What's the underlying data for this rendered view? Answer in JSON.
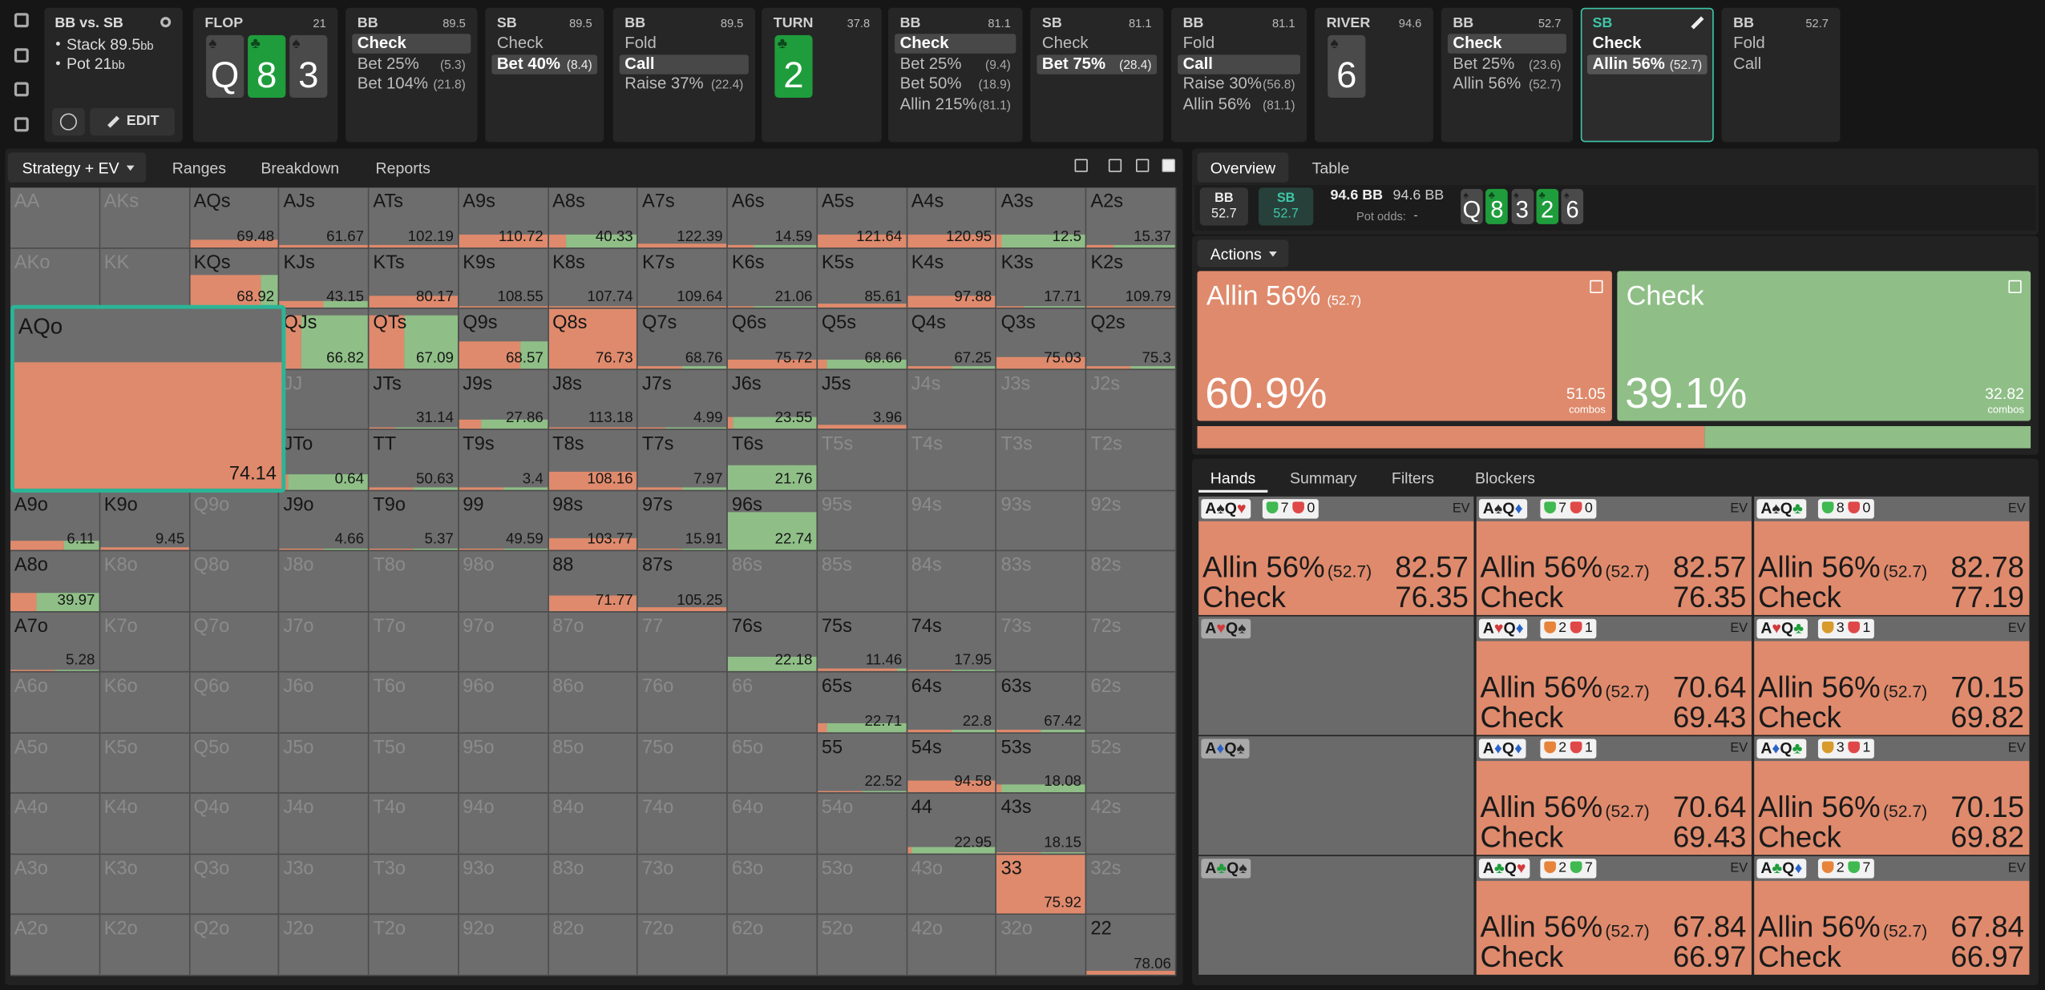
{
  "header": {
    "title": "BB vs. SB",
    "stack": "Stack 89.5",
    "stack_unit": "bb",
    "pot": "Pot 21",
    "pot_unit": "bb",
    "edit": "EDIT"
  },
  "nodes": [
    {
      "street": "FLOP",
      "pot": 21,
      "board": [
        {
          "rank": "Q",
          "suit": "♠"
        },
        {
          "rank": "8",
          "suit": "♣"
        },
        {
          "rank": "3",
          "suit": "♠"
        }
      ]
    },
    {
      "player": "BB",
      "stack": 89.5,
      "selected": 0,
      "actions": [
        {
          "label": "Check"
        },
        {
          "label": "Bet 25%",
          "size": "(5.3)"
        },
        {
          "label": "Bet 104%",
          "size": "(21.8)"
        }
      ]
    },
    {
      "player": "SB",
      "stack": 89.5,
      "selected": 1,
      "actions": [
        {
          "label": "Check"
        },
        {
          "label": "Bet 40%",
          "size": "(8.4)"
        }
      ]
    },
    {
      "player": "BB",
      "stack": 89.5,
      "selected": 1,
      "actions": [
        {
          "label": "Fold"
        },
        {
          "label": "Call"
        },
        {
          "label": "Raise 37%",
          "size": "(22.4)"
        }
      ]
    },
    {
      "street": "TURN",
      "pot": 37.8,
      "board": [
        {
          "rank": "2",
          "suit": "♣"
        }
      ]
    },
    {
      "player": "BB",
      "stack": 81.1,
      "selected": 0,
      "actions": [
        {
          "label": "Check"
        },
        {
          "label": "Bet 25%",
          "size": "(9.4)"
        },
        {
          "label": "Bet 50%",
          "size": "(18.9)"
        },
        {
          "label": "Allin 215%",
          "size": "(81.1)"
        }
      ]
    },
    {
      "player": "SB",
      "stack": 81.1,
      "selected": 1,
      "actions": [
        {
          "label": "Check"
        },
        {
          "label": "Bet 75%",
          "size": "(28.4)"
        }
      ]
    },
    {
      "player": "BB",
      "stack": 81.1,
      "selected": 1,
      "actions": [
        {
          "label": "Fold"
        },
        {
          "label": "Call"
        },
        {
          "label": "Raise 30%",
          "size": "(56.8)"
        },
        {
          "label": "Allin 56%",
          "size": "(81.1)"
        }
      ]
    },
    {
      "street": "RIVER",
      "pot": 94.6,
      "board": [
        {
          "rank": "6",
          "suit": "♠"
        }
      ]
    },
    {
      "player": "BB",
      "stack": 52.7,
      "selected": 0,
      "actions": [
        {
          "label": "Check"
        },
        {
          "label": "Bet 25%",
          "size": "(23.6)"
        },
        {
          "label": "Allin 56%",
          "size": "(52.7)"
        }
      ]
    },
    {
      "player": "SB",
      "active": true,
      "selected": 1,
      "actions": [
        {
          "label": "Check"
        },
        {
          "label": "Allin 56%",
          "size": "(52.7)"
        }
      ]
    },
    {
      "player": "BB",
      "stack": 52.7,
      "actions": [
        {
          "label": "Fold"
        },
        {
          "label": "Call"
        }
      ]
    }
  ],
  "left_tabs": [
    "Strategy + EV",
    "Ranges",
    "Breakdown",
    "Reports"
  ],
  "grid": {
    "hover": [
      2,
      0
    ],
    "rows": [
      [
        [
          "AA"
        ],
        [
          "AKs"
        ],
        [
          "AQs",
          69.48,
          0.12,
          1
        ],
        [
          "AJs",
          61.67,
          0.03,
          1
        ],
        [
          "ATs",
          102.19,
          0.03,
          1
        ],
        [
          "A9s",
          110.72,
          0.2,
          1
        ],
        [
          "A8s",
          40.33,
          0.2,
          0.2
        ],
        [
          "A7s",
          122.39,
          0.06,
          1
        ],
        [
          "A6s",
          14.59,
          0.03,
          0.3
        ],
        [
          "A5s",
          121.64,
          0.2,
          1
        ],
        [
          "A4s",
          120.95,
          0.2,
          1
        ],
        [
          "A3s",
          12.5,
          0.2,
          0.05
        ],
        [
          "A2s",
          15.37,
          0.03,
          0.3
        ]
      ],
      [
        [
          "AKo"
        ],
        [
          "KK"
        ],
        [
          "KQs",
          68.92,
          0.55,
          0.8
        ],
        [
          "KJs",
          43.15,
          0.12,
          0.5
        ],
        [
          "KTs",
          80.17,
          0.2,
          1
        ],
        [
          "K9s",
          108.55,
          0.03,
          1
        ],
        [
          "K8s",
          107.74,
          0.03,
          1
        ],
        [
          "K7s",
          109.64,
          0.03,
          1
        ],
        [
          "K6s",
          21.06,
          0.03,
          0.3
        ],
        [
          "K5s",
          85.61,
          0.06,
          1
        ],
        [
          "K4s",
          97.88,
          0.2,
          1
        ],
        [
          "K3s",
          17.71,
          0.03,
          0.3
        ],
        [
          "K2s",
          109.79,
          0.03,
          1
        ]
      ],
      [
        [
          "AQo",
          74.14,
          0.7,
          1
        ],
        null,
        null,
        [
          "QJs",
          66.82,
          0.9,
          0.25
        ],
        [
          "QTs",
          67.09,
          0.9,
          0.4
        ],
        [
          "Q9s",
          68.57,
          0.45,
          0.7
        ],
        [
          "Q8s",
          76.73,
          1,
          1
        ],
        [
          "Q7s",
          68.76,
          0.03,
          0.5
        ],
        [
          "Q6s",
          75.72,
          0.15,
          1
        ],
        [
          "Q5s",
          68.66,
          0.15,
          0.1
        ],
        [
          "Q4s",
          67.25,
          0.03,
          0.5
        ],
        [
          "Q3s",
          75.03,
          0.2,
          1
        ],
        [
          "Q2s",
          75.3,
          0.03,
          0.5
        ]
      ],
      [
        null,
        null,
        null,
        [
          "JJ"
        ],
        [
          "JTs",
          31.14,
          0.03,
          0.3
        ],
        [
          "J9s",
          27.86,
          0.15,
          0.25
        ],
        [
          "J8s",
          113.18,
          0.03,
          1
        ],
        [
          "J7s",
          4.99,
          0.03,
          0.3
        ],
        [
          "J6s",
          23.55,
          0.2,
          0.05
        ],
        [
          "J5s",
          3.96,
          0.06,
          1
        ],
        [
          "J4s"
        ],
        [
          "J3s"
        ],
        [
          "J2s"
        ]
      ],
      [
        null,
        null,
        null,
        [
          "JTo",
          0.64,
          0.25,
          0.1
        ],
        [
          "TT",
          50.63,
          0.03,
          0.5
        ],
        [
          "T9s",
          3.4,
          0.03,
          0.5
        ],
        [
          "T8s",
          108.16,
          0.3,
          1
        ],
        [
          "T7s",
          7.97,
          0.03,
          0.5
        ],
        [
          "T6s",
          21.76,
          0.4,
          0
        ],
        [
          "T5s"
        ],
        [
          "T4s"
        ],
        [
          "T3s"
        ],
        [
          "T2s"
        ]
      ],
      [
        [
          "A9o",
          6.11,
          0.15,
          0.6
        ],
        [
          "K9o",
          9.45,
          0.06,
          1
        ],
        [
          "Q9o"
        ],
        [
          "J9o",
          4.66,
          0.03,
          0.5
        ],
        [
          "T9o",
          5.37,
          0.03,
          0.5
        ],
        [
          "99",
          49.59,
          0.03,
          0.5
        ],
        [
          "98s",
          103.77,
          0.2,
          1
        ],
        [
          "97s",
          15.91,
          0.03,
          0.5
        ],
        [
          "96s",
          22.74,
          0.65,
          0
        ],
        [
          "95s"
        ],
        [
          "94s"
        ],
        [
          "93s"
        ],
        [
          "92s"
        ]
      ],
      [
        [
          "A8o",
          39.97,
          0.3,
          0.3
        ],
        [
          "K8o"
        ],
        [
          "Q8o"
        ],
        [
          "J8o"
        ],
        [
          "T8o"
        ],
        [
          "98o"
        ],
        [
          "88",
          71.77,
          0.25,
          1
        ],
        [
          "87s",
          105.25,
          0.06,
          1
        ],
        [
          "86s"
        ],
        [
          "85s"
        ],
        [
          "84s"
        ],
        [
          "83s"
        ],
        [
          "82s"
        ]
      ],
      [
        [
          "A7o",
          5.28,
          0.03,
          0.5
        ],
        [
          "K7o"
        ],
        [
          "Q7o"
        ],
        [
          "J7o"
        ],
        [
          "T7o"
        ],
        [
          "97o"
        ],
        [
          "87o"
        ],
        [
          "77"
        ],
        [
          "76s",
          22.18,
          0.25,
          0
        ],
        [
          "75s",
          11.46,
          0.06,
          0.9
        ],
        [
          "74s",
          17.95,
          0.03,
          0.5
        ],
        [
          "73s"
        ],
        [
          "72s"
        ]
      ],
      [
        [
          "A6o"
        ],
        [
          "K6o"
        ],
        [
          "Q6o"
        ],
        [
          "J6o"
        ],
        [
          "T6o"
        ],
        [
          "96o"
        ],
        [
          "86o"
        ],
        [
          "76o"
        ],
        [
          "66"
        ],
        [
          "65s",
          22.71,
          0.15,
          0.1
        ],
        [
          "64s",
          22.8,
          0.03,
          0.5
        ],
        [
          "63s",
          67.42,
          0.03,
          0.5
        ],
        [
          "62s"
        ]
      ],
      [
        [
          "A5o"
        ],
        [
          "K5o"
        ],
        [
          "Q5o"
        ],
        [
          "J5o"
        ],
        [
          "T5o"
        ],
        [
          "95o"
        ],
        [
          "85o"
        ],
        [
          "75o"
        ],
        [
          "65o"
        ],
        [
          "55",
          22.52,
          0.03,
          0.5
        ],
        [
          "54s",
          94.58,
          0.2,
          1
        ],
        [
          "53s",
          18.08,
          0.15,
          0.05
        ],
        [
          "52s"
        ]
      ],
      [
        [
          "A4o"
        ],
        [
          "K4o"
        ],
        [
          "Q4o"
        ],
        [
          "J4o"
        ],
        [
          "T4o"
        ],
        [
          "94o"
        ],
        [
          "84o"
        ],
        [
          "74o"
        ],
        [
          "64o"
        ],
        [
          "54o"
        ],
        [
          "44",
          22.95,
          0.1,
          0.05
        ],
        [
          "43s",
          18.15,
          0.03,
          0.5
        ],
        [
          "42s"
        ]
      ],
      [
        [
          "A3o"
        ],
        [
          "K3o"
        ],
        [
          "Q3o"
        ],
        [
          "J3o"
        ],
        [
          "T3o"
        ],
        [
          "93o"
        ],
        [
          "83o"
        ],
        [
          "73o"
        ],
        [
          "63o"
        ],
        [
          "53o"
        ],
        [
          "43o"
        ],
        [
          "33",
          75.92,
          1,
          1
        ],
        [
          "32s"
        ]
      ],
      [
        [
          "A2o"
        ],
        [
          "K2o"
        ],
        [
          "Q2o"
        ],
        [
          "J2o"
        ],
        [
          "T2o"
        ],
        [
          "92o"
        ],
        [
          "82o"
        ],
        [
          "72o"
        ],
        [
          "62o"
        ],
        [
          "52o"
        ],
        [
          "42o"
        ],
        [
          "32o"
        ],
        [
          "22",
          78.06,
          0.06,
          1
        ]
      ]
    ]
  },
  "right_tabs": [
    "Overview",
    "Table"
  ],
  "overview": {
    "players": [
      {
        "name": "BB",
        "stack": 52.7
      },
      {
        "name": "SB",
        "stack": 52.7
      }
    ],
    "pot": "94.6 BB",
    "pot_total": "94.6 BB",
    "pot_odds_label": "Pot odds:",
    "pot_odds": "-",
    "board": [
      {
        "rank": "Q",
        "suit": "♠"
      },
      {
        "rank": "8",
        "suit": "♣"
      },
      {
        "rank": "3",
        "suit": "♠"
      },
      {
        "rank": "2",
        "suit": "♣"
      },
      {
        "rank": "6",
        "suit": "♠"
      }
    ]
  },
  "actions_label": "Actions",
  "actions": [
    {
      "name": "Allin 56%",
      "size": "(52.7)",
      "frequency": {
        "value": 60.9,
        "label": "60.9%"
      },
      "combos": 51.05,
      "combos_label": "combos",
      "color": "#df8a6c"
    },
    {
      "name": "Check",
      "frequency": {
        "value": 39.1,
        "label": "39.1%"
      },
      "combos": 32.82,
      "combos_label": "combos",
      "color": "#8fbf87"
    }
  ],
  "hand_tabs": [
    "Hands",
    "Summary",
    "Filters",
    "Blockers"
  ],
  "hands": [
    {
      "cards": [
        {
          "rank": "A",
          "suit": "♠"
        },
        {
          "rank": "Q",
          "suit": "♥"
        }
      ],
      "badges": [
        {
          "value": 7,
          "color": "#3fb950"
        },
        {
          "value": 0,
          "color": "#e04848"
        }
      ],
      "ev_label": "EV",
      "rows": [
        {
          "action": "Allin 56%",
          "size": "(52.7)",
          "ev": 82.57
        },
        {
          "action": "Check",
          "ev": 76.35
        }
      ]
    },
    {
      "cards": [
        {
          "rank": "A",
          "suit": "♠"
        },
        {
          "rank": "Q",
          "suit": "♦"
        }
      ],
      "badges": [
        {
          "value": 7,
          "color": "#3fb950"
        },
        {
          "value": 0,
          "color": "#e04848"
        }
      ],
      "ev_label": "EV",
      "rows": [
        {
          "action": "Allin 56%",
          "size": "(52.7)",
          "ev": 82.57
        },
        {
          "action": "Check",
          "ev": 76.35
        }
      ]
    },
    {
      "cards": [
        {
          "rank": "A",
          "suit": "♠"
        },
        {
          "rank": "Q",
          "suit": "♣"
        }
      ],
      "badges": [
        {
          "value": 8,
          "color": "#3fb950"
        },
        {
          "value": 0,
          "color": "#e04848"
        }
      ],
      "ev_label": "EV",
      "rows": [
        {
          "action": "Allin 56%",
          "size": "(52.7)",
          "ev": 82.78
        },
        {
          "action": "Check",
          "ev": 77.19
        }
      ]
    },
    {
      "cards": [
        {
          "rank": "A",
          "suit": "♥"
        },
        {
          "rank": "Q",
          "suit": "♠"
        }
      ]
    },
    {
      "cards": [
        {
          "rank": "A",
          "suit": "♥"
        },
        {
          "rank": "Q",
          "suit": "♦"
        }
      ],
      "badges": [
        {
          "value": 2,
          "color": "#e8833a"
        },
        {
          "value": 1,
          "color": "#e04848"
        }
      ],
      "ev_label": "EV",
      "rows": [
        {
          "action": "Allin 56%",
          "size": "(52.7)",
          "ev": 70.64
        },
        {
          "action": "Check",
          "ev": 69.43
        }
      ]
    },
    {
      "cards": [
        {
          "rank": "A",
          "suit": "♥"
        },
        {
          "rank": "Q",
          "suit": "♣"
        }
      ],
      "badges": [
        {
          "value": 3,
          "color": "#d89a2b"
        },
        {
          "value": 1,
          "color": "#e04848"
        }
      ],
      "ev_label": "EV",
      "rows": [
        {
          "action": "Allin 56%",
          "size": "(52.7)",
          "ev": 70.15
        },
        {
          "action": "Check",
          "ev": 69.82
        }
      ]
    },
    {
      "cards": [
        {
          "rank": "A",
          "suit": "♦"
        },
        {
          "rank": "Q",
          "suit": "♠"
        }
      ]
    },
    {
      "cards": [
        {
          "rank": "A",
          "suit": "♦"
        },
        {
          "rank": "Q",
          "suit": "♦"
        }
      ],
      "badges": [
        {
          "value": 2,
          "color": "#e8833a"
        },
        {
          "value": 1,
          "color": "#e04848"
        }
      ],
      "ev_label": "EV",
      "rows": [
        {
          "action": "Allin 56%",
          "size": "(52.7)",
          "ev": 70.64
        },
        {
          "action": "Check",
          "ev": 69.43
        }
      ]
    },
    {
      "cards": [
        {
          "rank": "A",
          "suit": "♦"
        },
        {
          "rank": "Q",
          "suit": "♣"
        }
      ],
      "badges": [
        {
          "value": 3,
          "color": "#d89a2b"
        },
        {
          "value": 1,
          "color": "#e04848"
        }
      ],
      "ev_label": "EV",
      "rows": [
        {
          "action": "Allin 56%",
          "size": "(52.7)",
          "ev": 70.15
        },
        {
          "action": "Check",
          "ev": 69.82
        }
      ]
    },
    {
      "cards": [
        {
          "rank": "A",
          "suit": "♣"
        },
        {
          "rank": "Q",
          "suit": "♠"
        }
      ]
    },
    {
      "cards": [
        {
          "rank": "A",
          "suit": "♣"
        },
        {
          "rank": "Q",
          "suit": "♥"
        }
      ],
      "badges": [
        {
          "value": 2,
          "color": "#e8833a"
        },
        {
          "value": 7,
          "color": "#3fb950"
        }
      ],
      "ev_label": "EV",
      "rows": [
        {
          "action": "Allin 56%",
          "size": "(52.7)",
          "ev": 67.84
        },
        {
          "action": "Check",
          "ev": 66.97
        }
      ]
    },
    {
      "cards": [
        {
          "rank": "A",
          "suit": "♣"
        },
        {
          "rank": "Q",
          "suit": "♦"
        }
      ],
      "badges": [
        {
          "value": 2,
          "color": "#e8833a"
        },
        {
          "value": 7,
          "color": "#3fb950"
        }
      ],
      "ev_label": "EV",
      "rows": [
        {
          "action": "Allin 56%",
          "size": "(52.7)",
          "ev": 67.84
        },
        {
          "action": "Check",
          "ev": 66.97
        }
      ]
    }
  ]
}
